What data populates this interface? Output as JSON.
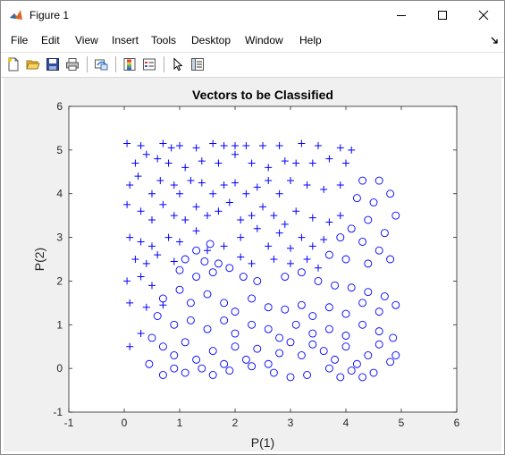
{
  "window": {
    "title": "Figure 1",
    "icons": {
      "app": "matlab-figure-icon"
    }
  },
  "menu": {
    "items": [
      "File",
      "Edit",
      "View",
      "Insert",
      "Tools",
      "Desktop",
      "Window",
      "Help"
    ]
  },
  "toolbar": {
    "buttons": [
      "new-figure-icon",
      "open-file-icon",
      "save-icon",
      "print-icon",
      "link-plot-icon",
      "colorbar-icon",
      "legend-icon",
      "pointer-icon",
      "property-editor-icon"
    ]
  },
  "chart_data": {
    "type": "scatter",
    "title": "Vectors to be Classified",
    "xlabel": "P(1)",
    "ylabel": "P(2)",
    "xlim": [
      -1,
      6
    ],
    "ylim": [
      -1,
      6
    ],
    "xticks": [
      "-1",
      "0",
      "1",
      "2",
      "3",
      "4",
      "5",
      "6"
    ],
    "yticks": [
      "-1",
      "0",
      "1",
      "2",
      "3",
      "4",
      "5",
      "6"
    ],
    "grid": false,
    "color": "#0000ff",
    "series": [
      {
        "marker": "plus",
        "points": [
          [
            0.05,
            5.15
          ],
          [
            0.3,
            5.1
          ],
          [
            0.4,
            4.9
          ],
          [
            0.7,
            5.15
          ],
          [
            0.85,
            5.05
          ],
          [
            1.0,
            5.1
          ],
          [
            1.3,
            5.05
          ],
          [
            1.6,
            5.15
          ],
          [
            1.8,
            5.1
          ],
          [
            2.0,
            5.1
          ],
          [
            2.2,
            5.1
          ],
          [
            2.5,
            5.1
          ],
          [
            2.8,
            5.1
          ],
          [
            3.2,
            5.15
          ],
          [
            3.5,
            5.1
          ],
          [
            3.9,
            5.05
          ],
          [
            4.1,
            5.0
          ],
          [
            0.2,
            4.7
          ],
          [
            0.6,
            4.8
          ],
          [
            0.8,
            4.7
          ],
          [
            1.1,
            4.6
          ],
          [
            1.4,
            4.75
          ],
          [
            1.7,
            4.7
          ],
          [
            2.0,
            4.9
          ],
          [
            2.3,
            4.7
          ],
          [
            2.6,
            4.6
          ],
          [
            2.9,
            4.75
          ],
          [
            3.1,
            4.7
          ],
          [
            3.4,
            4.7
          ],
          [
            3.7,
            4.8
          ],
          [
            4.0,
            4.7
          ],
          [
            0.1,
            4.2
          ],
          [
            0.25,
            4.4
          ],
          [
            0.5,
            4.0
          ],
          [
            0.65,
            4.3
          ],
          [
            0.9,
            4.2
          ],
          [
            1.0,
            4.0
          ],
          [
            1.2,
            4.3
          ],
          [
            1.4,
            4.25
          ],
          [
            1.6,
            4.0
          ],
          [
            1.8,
            4.2
          ],
          [
            2.0,
            4.25
          ],
          [
            2.2,
            4.0
          ],
          [
            2.4,
            4.15
          ],
          [
            2.6,
            4.3
          ],
          [
            2.8,
            4.0
          ],
          [
            3.0,
            4.3
          ],
          [
            3.3,
            4.2
          ],
          [
            3.6,
            4.1
          ],
          [
            3.9,
            4.2
          ],
          [
            0.05,
            3.75
          ],
          [
            0.3,
            3.6
          ],
          [
            0.5,
            3.4
          ],
          [
            0.7,
            3.75
          ],
          [
            0.9,
            3.5
          ],
          [
            1.1,
            3.4
          ],
          [
            1.3,
            3.7
          ],
          [
            1.5,
            3.5
          ],
          [
            1.7,
            3.6
          ],
          [
            1.9,
            3.8
          ],
          [
            2.1,
            3.4
          ],
          [
            2.3,
            3.5
          ],
          [
            2.5,
            3.7
          ],
          [
            2.7,
            3.5
          ],
          [
            2.9,
            3.3
          ],
          [
            3.1,
            3.6
          ],
          [
            3.4,
            3.45
          ],
          [
            3.7,
            3.35
          ],
          [
            3.9,
            3.5
          ],
          [
            0.1,
            3.0
          ],
          [
            0.3,
            2.9
          ],
          [
            0.5,
            2.8
          ],
          [
            0.8,
            3.0
          ],
          [
            1.0,
            2.9
          ],
          [
            1.3,
            3.15
          ],
          [
            1.5,
            2.7
          ],
          [
            1.8,
            2.8
          ],
          [
            2.1,
            3.0
          ],
          [
            2.4,
            3.2
          ],
          [
            2.6,
            2.8
          ],
          [
            2.8,
            3.1
          ],
          [
            3.0,
            2.75
          ],
          [
            3.2,
            3.0
          ],
          [
            3.4,
            2.8
          ],
          [
            3.6,
            2.95
          ],
          [
            0.2,
            2.5
          ],
          [
            0.4,
            2.4
          ],
          [
            0.6,
            2.6
          ],
          [
            0.9,
            2.45
          ],
          [
            2.1,
            2.55
          ],
          [
            2.3,
            2.4
          ],
          [
            2.7,
            2.5
          ],
          [
            3.0,
            2.4
          ],
          [
            3.3,
            2.5
          ],
          [
            3.5,
            2.3
          ],
          [
            0.05,
            2.0
          ],
          [
            0.3,
            2.1
          ],
          [
            0.5,
            1.9
          ],
          [
            0.1,
            1.5
          ],
          [
            0.4,
            1.4
          ],
          [
            0.7,
            1.45
          ],
          [
            0.3,
            0.8
          ],
          [
            0.1,
            0.5
          ]
        ]
      },
      {
        "marker": "circle",
        "points": [
          [
            4.3,
            4.3
          ],
          [
            4.6,
            4.3
          ],
          [
            4.8,
            4.0
          ],
          [
            4.2,
            3.9
          ],
          [
            4.5,
            3.8
          ],
          [
            4.9,
            3.5
          ],
          [
            4.4,
            3.4
          ],
          [
            4.1,
            3.2
          ],
          [
            4.7,
            3.1
          ],
          [
            3.9,
            3.0
          ],
          [
            4.3,
            2.9
          ],
          [
            4.6,
            2.7
          ],
          [
            3.7,
            2.6
          ],
          [
            4.0,
            2.5
          ],
          [
            4.4,
            2.4
          ],
          [
            4.8,
            2.5
          ],
          [
            1.3,
            2.7
          ],
          [
            1.55,
            2.85
          ],
          [
            1.1,
            2.5
          ],
          [
            1.45,
            2.45
          ],
          [
            1.7,
            2.4
          ],
          [
            1.0,
            2.25
          ],
          [
            1.3,
            2.1
          ],
          [
            1.6,
            2.2
          ],
          [
            1.9,
            2.3
          ],
          [
            2.15,
            2.1
          ],
          [
            2.4,
            2.0
          ],
          [
            2.9,
            2.1
          ],
          [
            3.2,
            2.2
          ],
          [
            3.5,
            2.0
          ],
          [
            3.8,
            1.9
          ],
          [
            4.1,
            1.85
          ],
          [
            4.4,
            1.75
          ],
          [
            4.7,
            1.65
          ],
          [
            0.7,
            1.6
          ],
          [
            1.0,
            1.8
          ],
          [
            1.2,
            1.5
          ],
          [
            1.5,
            1.7
          ],
          [
            1.8,
            1.5
          ],
          [
            2.0,
            1.3
          ],
          [
            2.3,
            1.6
          ],
          [
            2.6,
            1.4
          ],
          [
            2.9,
            1.35
          ],
          [
            3.2,
            1.45
          ],
          [
            3.4,
            1.2
          ],
          [
            3.7,
            1.4
          ],
          [
            4.0,
            1.25
          ],
          [
            4.3,
            1.5
          ],
          [
            4.6,
            1.3
          ],
          [
            4.9,
            1.45
          ],
          [
            0.6,
            1.2
          ],
          [
            0.9,
            1.0
          ],
          [
            1.2,
            1.1
          ],
          [
            1.5,
            0.9
          ],
          [
            1.8,
            1.1
          ],
          [
            2.0,
            0.8
          ],
          [
            2.3,
            1.0
          ],
          [
            2.6,
            0.9
          ],
          [
            2.8,
            0.7
          ],
          [
            3.1,
            1.0
          ],
          [
            3.4,
            0.8
          ],
          [
            3.7,
            0.9
          ],
          [
            4.0,
            0.75
          ],
          [
            4.3,
            1.0
          ],
          [
            4.6,
            0.85
          ],
          [
            4.85,
            0.7
          ],
          [
            0.5,
            0.7
          ],
          [
            0.7,
            0.5
          ],
          [
            0.9,
            0.3
          ],
          [
            1.1,
            0.6
          ],
          [
            1.3,
            0.2
          ],
          [
            1.6,
            0.4
          ],
          [
            1.8,
            0.1
          ],
          [
            2.0,
            0.5
          ],
          [
            2.2,
            0.2
          ],
          [
            2.4,
            0.45
          ],
          [
            2.6,
            0.1
          ],
          [
            2.8,
            0.35
          ],
          [
            3.0,
            0.6
          ],
          [
            3.2,
            0.3
          ],
          [
            3.4,
            0.55
          ],
          [
            3.6,
            0.4
          ],
          [
            3.8,
            0.2
          ],
          [
            4.0,
            0.5
          ],
          [
            4.2,
            0.1
          ],
          [
            4.4,
            0.3
          ],
          [
            4.6,
            0.55
          ],
          [
            4.9,
            0.3
          ],
          [
            0.45,
            0.1
          ],
          [
            0.7,
            -0.15
          ],
          [
            0.9,
            0.0
          ],
          [
            1.1,
            -0.1
          ],
          [
            1.4,
            0.0
          ],
          [
            1.6,
            -0.15
          ],
          [
            1.9,
            -0.05
          ],
          [
            2.3,
            0.05
          ],
          [
            2.7,
            -0.1
          ],
          [
            3.0,
            -0.2
          ],
          [
            3.3,
            -0.15
          ],
          [
            3.7,
            0.0
          ],
          [
            3.9,
            -0.2
          ],
          [
            4.1,
            -0.05
          ],
          [
            4.3,
            -0.2
          ],
          [
            4.5,
            -0.1
          ],
          [
            4.8,
            0.15
          ]
        ]
      }
    ]
  }
}
